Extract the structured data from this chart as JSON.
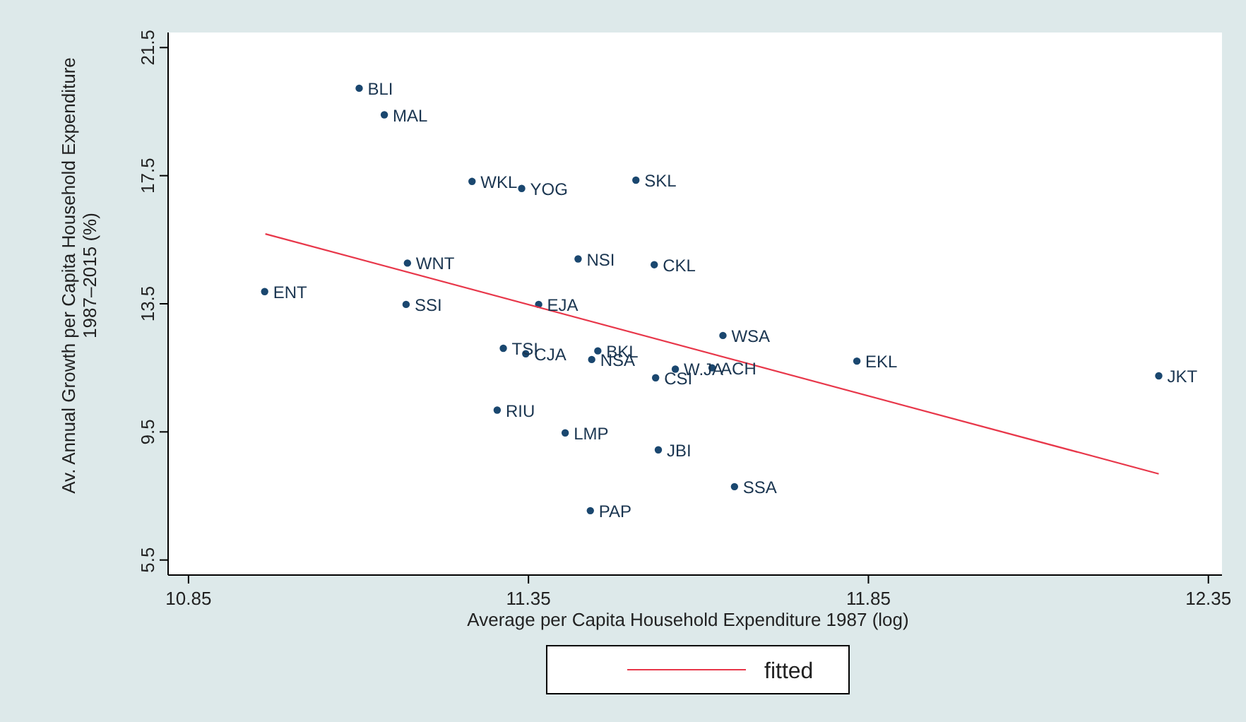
{
  "chart_data": {
    "type": "scatter",
    "xlabel": "Average per Capita Household Expenditure 1987 (log)",
    "ylabel": "Av. Annual Growth per Capita Household Expenditure\n1987–2015 (%)",
    "xlim": [
      10.82,
      12.37
    ],
    "xticks": [
      10.85,
      11.35,
      11.85,
      12.35
    ],
    "ylim": [
      5.03,
      21.97
    ],
    "yticks": [
      5.5,
      9.5,
      13.5,
      17.5,
      21.5
    ],
    "grid": false,
    "legend": "bottom",
    "series": [
      {
        "marker": "circle",
        "color": "#1a476f",
        "x": [
          11.101,
          11.138,
          11.267,
          11.34,
          11.508,
          11.172,
          11.423,
          11.535,
          10.962,
          11.17,
          11.365,
          11.313,
          11.346,
          11.452,
          11.443,
          11.636,
          11.566,
          11.62,
          11.537,
          11.833,
          12.277,
          11.304,
          11.404,
          11.541,
          11.653,
          11.441
        ],
        "values": [
          20.23,
          19.4,
          17.32,
          17.1,
          17.36,
          14.77,
          14.9,
          14.72,
          13.88,
          13.48,
          13.48,
          12.11,
          11.94,
          12.03,
          11.76,
          12.51,
          11.46,
          11.5,
          11.19,
          11.71,
          11.25,
          10.18,
          9.47,
          8.94,
          7.79,
          7.04
        ]
      },
      {
        "type": "line",
        "marker": "none",
        "name": "fitted",
        "color": "#e8374a",
        "x": [
          10.963,
          12.277
        ],
        "values": [
          15.68,
          8.19
        ]
      }
    ],
    "annotations": [
      {
        "text": "BLI",
        "x": 11.101,
        "y": 20.23
      },
      {
        "text": "MAL",
        "x": 11.138,
        "y": 19.4
      },
      {
        "text": "WKL",
        "x": 11.267,
        "y": 17.32
      },
      {
        "text": "YOG",
        "x": 11.34,
        "y": 17.1
      },
      {
        "text": "SKL",
        "x": 11.508,
        "y": 17.36
      },
      {
        "text": "WNT",
        "x": 11.172,
        "y": 14.77
      },
      {
        "text": "NSI",
        "x": 11.423,
        "y": 14.9
      },
      {
        "text": "CKL",
        "x": 11.535,
        "y": 14.72
      },
      {
        "text": "ENT",
        "x": 10.962,
        "y": 13.88
      },
      {
        "text": "SSI",
        "x": 11.17,
        "y": 13.48
      },
      {
        "text": "EJA",
        "x": 11.365,
        "y": 13.48
      },
      {
        "text": "TSI",
        "x": 11.313,
        "y": 12.11
      },
      {
        "text": "CJA",
        "x": 11.346,
        "y": 11.94
      },
      {
        "text": "BKL",
        "x": 11.452,
        "y": 12.03
      },
      {
        "text": "NSA",
        "x": 11.443,
        "y": 11.76
      },
      {
        "text": "WSA",
        "x": 11.636,
        "y": 12.51
      },
      {
        "text": "W.JA",
        "x": 11.566,
        "y": 11.46
      },
      {
        "text": "ACH",
        "x": 11.62,
        "y": 11.5
      },
      {
        "text": "CSI",
        "x": 11.537,
        "y": 11.19
      },
      {
        "text": "EKL",
        "x": 11.833,
        "y": 11.71
      },
      {
        "text": "JKT",
        "x": 12.277,
        "y": 11.25
      },
      {
        "text": "RIU",
        "x": 11.304,
        "y": 10.18
      },
      {
        "text": "LMP",
        "x": 11.404,
        "y": 9.47
      },
      {
        "text": "JBI",
        "x": 11.541,
        "y": 8.94
      },
      {
        "text": "SSA",
        "x": 11.653,
        "y": 7.79
      },
      {
        "text": "PAP",
        "x": 11.441,
        "y": 7.04
      }
    ]
  }
}
